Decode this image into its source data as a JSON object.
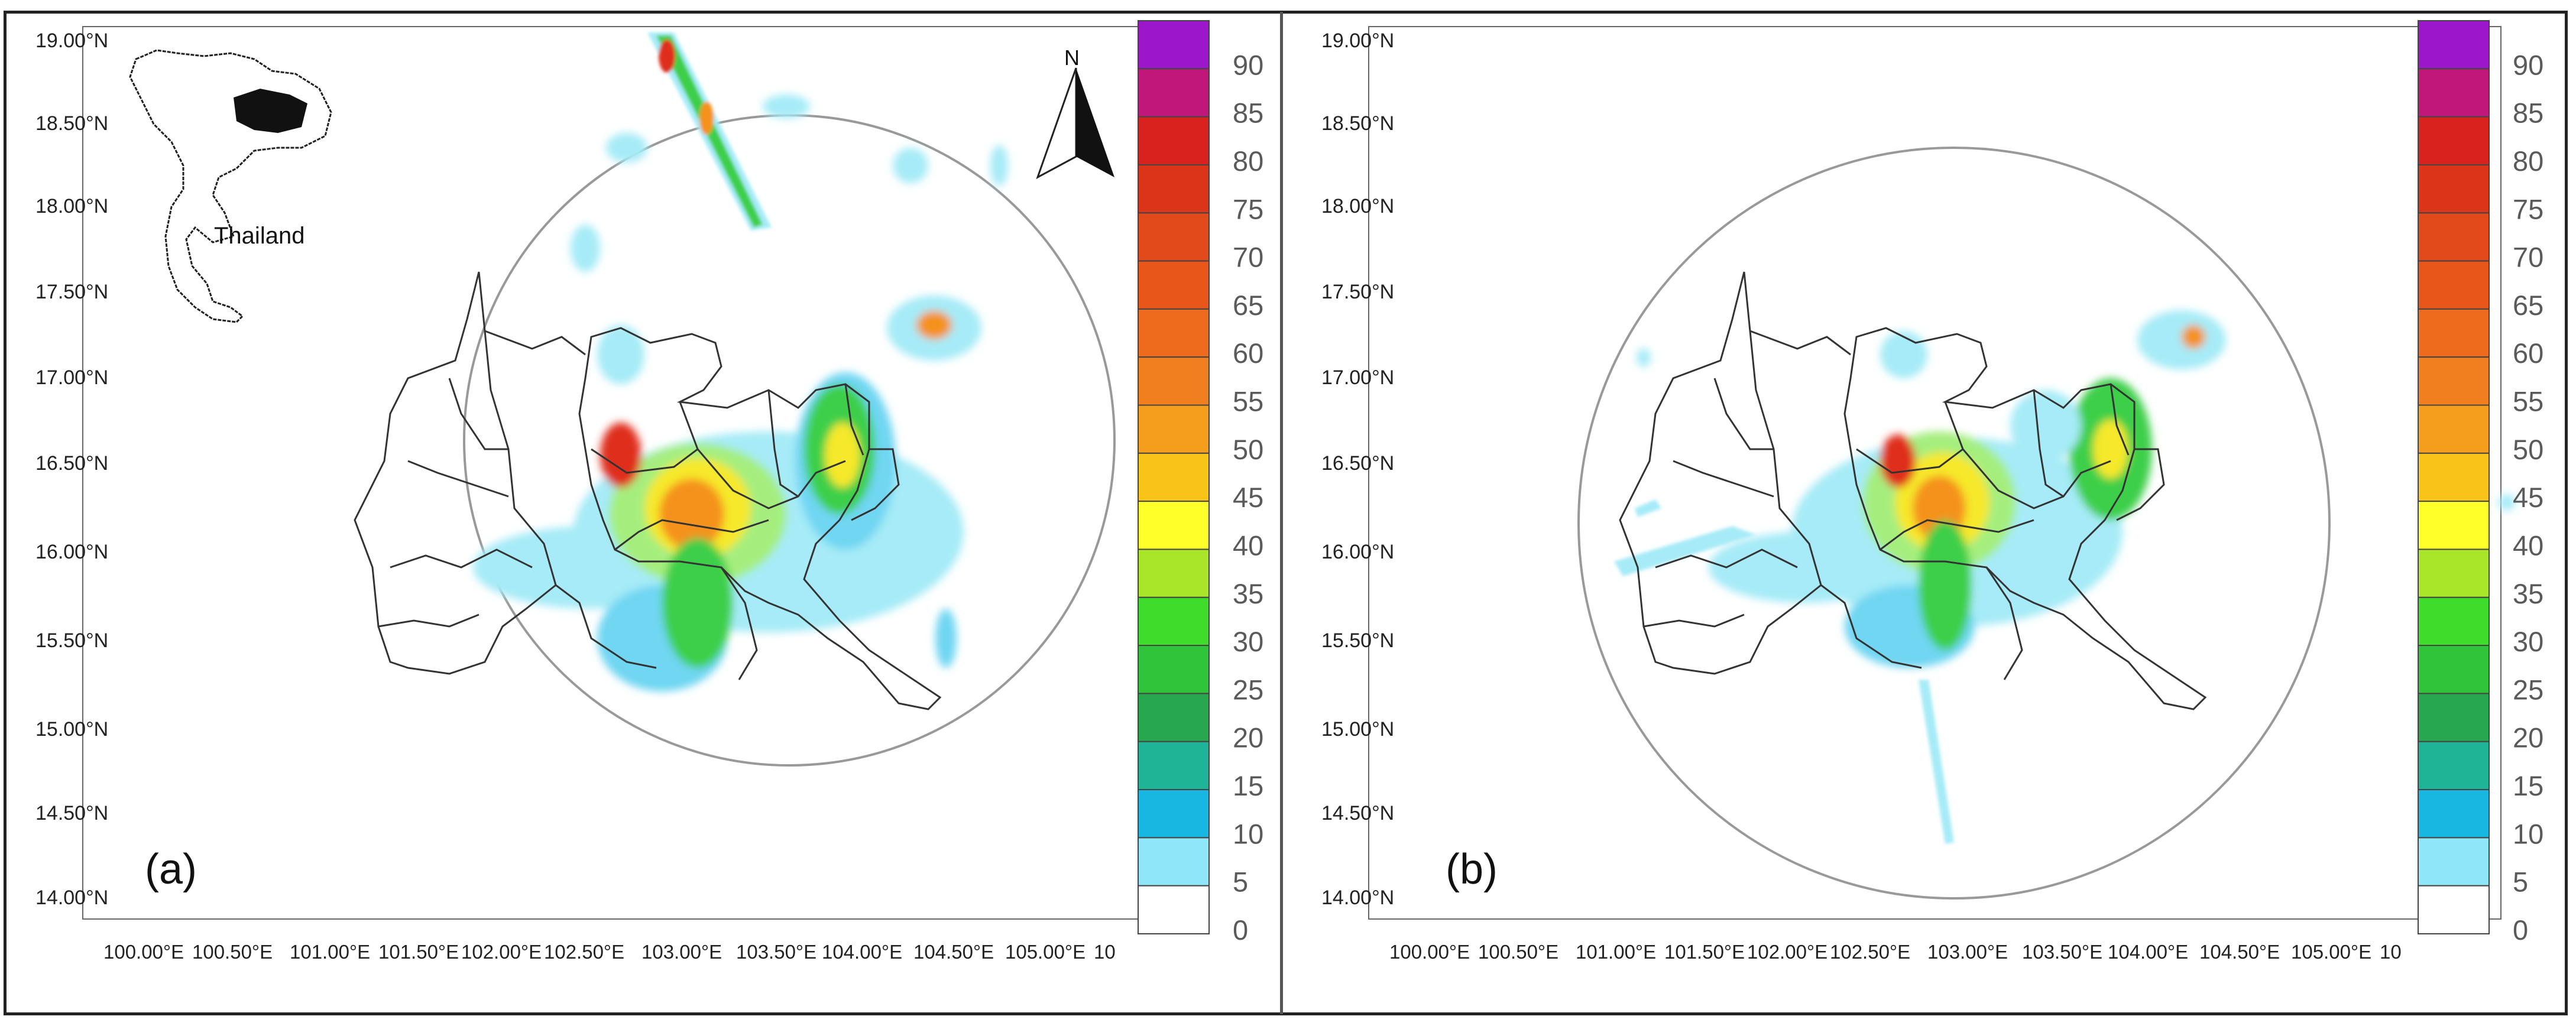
{
  "figure": {
    "panels": [
      {
        "label": "(a)",
        "lat_ticks": [
          "19.00°N",
          "18.50°N",
          "18.00°N",
          "17.50°N",
          "17.00°N",
          "16.50°N",
          "16.00°N",
          "15.50°N",
          "15.00°N",
          "14.50°N",
          "14.00°N"
        ],
        "lon_ticks": [
          "100.00°E",
          "100.50°E",
          "101.00°E",
          "101.50°E",
          "102.00°E",
          "102.50°E",
          "103.00°E",
          "103.50°E",
          "104.00°E",
          "104.50°E",
          "105.00°E",
          "10"
        ],
        "inset_label": "Thailand",
        "north_label": "N"
      },
      {
        "label": "(b)",
        "lat_ticks": [
          "19.00°N",
          "18.50°N",
          "18.00°N",
          "17.50°N",
          "17.00°N",
          "16.50°N",
          "16.00°N",
          "15.50°N",
          "15.00°N",
          "14.50°N",
          "14.00°N"
        ],
        "lon_ticks": [
          "100.00°E",
          "100.50°E",
          "101.00°E",
          "101.50°E",
          "102.00°E",
          "102.50°E",
          "103.00°E",
          "103.50°E",
          "104.00°E",
          "104.50°E",
          "105.00°E",
          "10"
        ]
      }
    ],
    "colorbar": {
      "labels": [
        "90",
        "85",
        "80",
        "75",
        "70",
        "65",
        "60",
        "55",
        "50",
        "45",
        "40",
        "35",
        "30",
        "25",
        "20",
        "15",
        "10",
        "5",
        "0"
      ],
      "colors": [
        "#9b17c9",
        "#c0187a",
        "#d9221d",
        "#dc3419",
        "#e24a1a",
        "#e8561a",
        "#ee6a1c",
        "#f27f1d",
        "#f59d1d",
        "#f7c417",
        "#ffff2a",
        "#a9e62a",
        "#3fdc2c",
        "#2fc43a",
        "#27a84e",
        "#20b496",
        "#18b7e2",
        "#8fe6f8",
        "#ffffff"
      ]
    },
    "map_colors": {
      "light_cyan": "#a6ebf7",
      "cyan": "#6fd6f2",
      "light_green": "#a5ee7e",
      "green": "#3dcf4a",
      "yellow": "#f6e82a",
      "orange": "#f5921d",
      "red": "#df2d1e",
      "boundary": "#333333"
    }
  }
}
